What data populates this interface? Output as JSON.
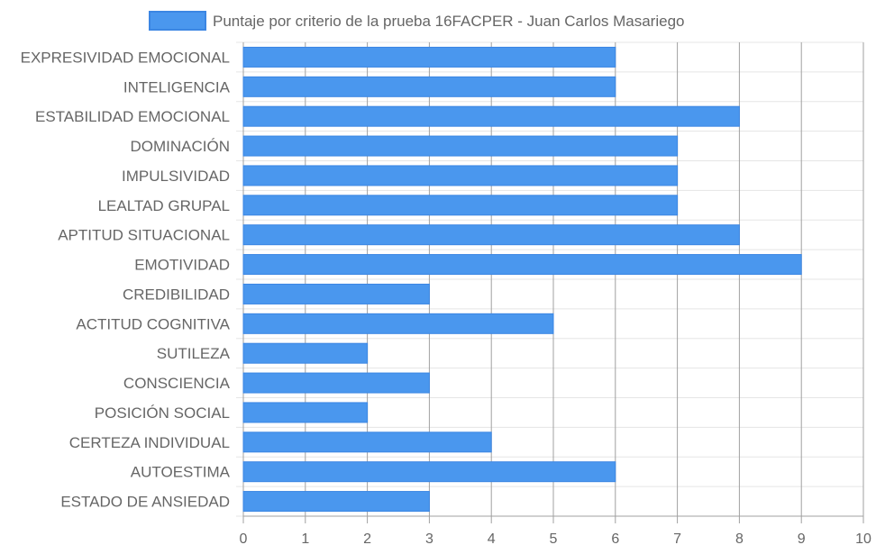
{
  "chart_data": {
    "type": "bar",
    "orientation": "horizontal",
    "legend": "top-center",
    "grid": true,
    "xlim": [
      0,
      10
    ],
    "x_ticks": [
      "0",
      "1",
      "2",
      "3",
      "4",
      "5",
      "6",
      "7",
      "8",
      "9",
      "10"
    ],
    "categories": [
      "EXPRESIVIDAD EMOCIONAL",
      "INTELIGENCIA",
      "ESTABILIDAD EMOCIONAL",
      "DOMINACIÓN",
      "IMPULSIVIDAD",
      "LEALTAD GRUPAL",
      "APTITUD SITUACIONAL",
      "EMOTIVIDAD",
      "CREDIBILIDAD",
      "ACTITUD COGNITIVA",
      "SUTILEZA",
      "CONSCIENCIA",
      "POSICIÓN SOCIAL",
      "CERTEZA INDIVIDUAL",
      "AUTOESTIMA",
      "ESTADO DE ANSIEDAD"
    ],
    "series": [
      {
        "name": "Puntaje por criterio de la prueba 16FACPER - Juan Carlos Masariego",
        "values": [
          6,
          6,
          8,
          7,
          7,
          7,
          8,
          9,
          3,
          5,
          2,
          3,
          2,
          4,
          6,
          3
        ]
      }
    ],
    "colors": {
      "bar_fill": "#4a97ee",
      "bar_border": "#3b86e3",
      "grid": "#e5e5e5",
      "grid_major": "#a0a0a0",
      "text": "#666666"
    }
  }
}
